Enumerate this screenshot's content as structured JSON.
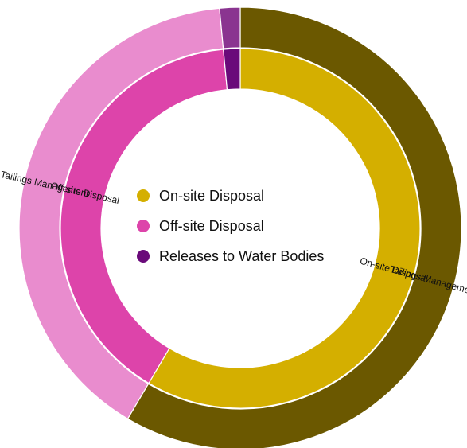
{
  "chart_data": {
    "type": "sunburst",
    "legend_position": "center",
    "legend": [
      {
        "label": "On-site Disposal",
        "color": "#d4af00"
      },
      {
        "label": "Off-site Disposal",
        "color": "#dd44aa"
      },
      {
        "label": "Releases to Water Bodies",
        "color": "#6a0a7a"
      }
    ],
    "outer_ring": [
      {
        "name": "Tailings Management",
        "value": 58.5,
        "color": "#6b5800",
        "label_visible": true
      },
      {
        "name": "Tailings Management",
        "value": 40.0,
        "color": "#e98cce",
        "label_visible": true
      },
      {
        "name": "",
        "value": 1.5,
        "color": "#8a3490",
        "label_visible": false
      }
    ],
    "inner_ring": [
      {
        "name": "On-site Disposal",
        "value": 58.5,
        "color": "#d4af00",
        "label_visible": true
      },
      {
        "name": "Off-site Disposal",
        "value": 40.0,
        "color": "#dd44aa",
        "label_visible": true
      },
      {
        "name": "Releases to Water Bodies",
        "value": 1.5,
        "color": "#6a0a7a",
        "label_visible": false
      }
    ]
  }
}
